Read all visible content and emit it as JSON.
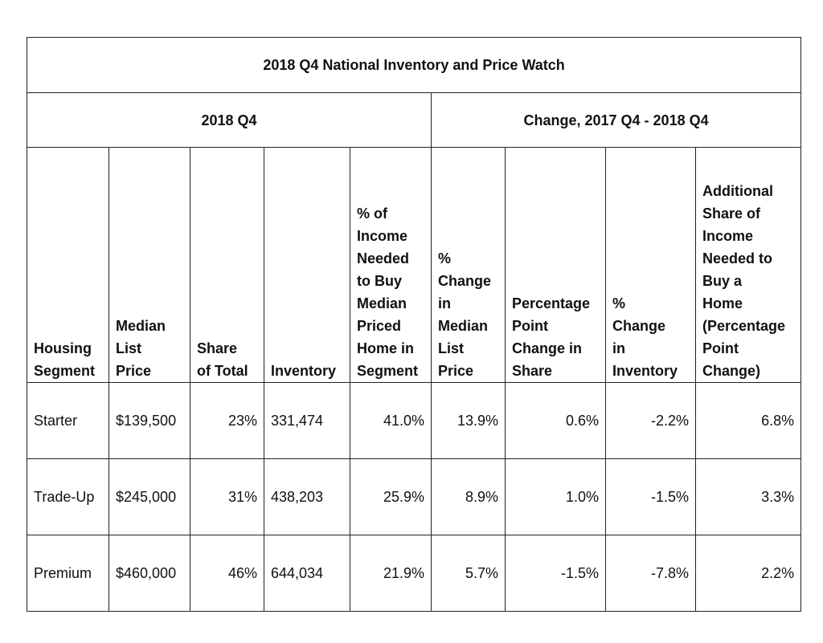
{
  "title": "2018 Q4 National Inventory and Price Watch",
  "groups": [
    {
      "label": "2018 Q4"
    },
    {
      "label": "Change, 2017 Q4 - 2018 Q4"
    }
  ],
  "headers": [
    "Housing\nSegment",
    "Median\nList\nPrice",
    "Share\nof Total",
    "Inventory",
    "% of\nIncome\nNeeded\nto Buy\nMedian\nPriced\nHome in\nSegment",
    "%\nChange\nin\nMedian\nList\nPrice",
    "Percentage\nPoint\nChange in\nShare",
    "%\nChange\nin\nInventory",
    "Additional\nShare of\nIncome\nNeeded to\nBuy a\nHome\n(Percentage\nPoint\nChange)"
  ],
  "rows": [
    {
      "segment": "Starter",
      "median_list_price": "$139,500",
      "share_of_total": "23%",
      "inventory": "331,474",
      "pct_income_needed": "41.0%",
      "pct_change_median_price": "13.9%",
      "pp_change_share": "0.6%",
      "pct_change_inventory": "-2.2%",
      "additional_income_share_pp": "6.8%"
    },
    {
      "segment": "Trade-Up",
      "median_list_price": "$245,000",
      "share_of_total": "31%",
      "inventory": "438,203",
      "pct_income_needed": "25.9%",
      "pct_change_median_price": "8.9%",
      "pp_change_share": "1.0%",
      "pct_change_inventory": "-1.5%",
      "additional_income_share_pp": "3.3%"
    },
    {
      "segment": "Premium",
      "median_list_price": "$460,000",
      "share_of_total": "46%",
      "inventory": "644,034",
      "pct_income_needed": "21.9%",
      "pct_change_median_price": "5.7%",
      "pp_change_share": "-1.5%",
      "pct_change_inventory": "-7.8%",
      "additional_income_share_pp": "2.2%"
    }
  ]
}
